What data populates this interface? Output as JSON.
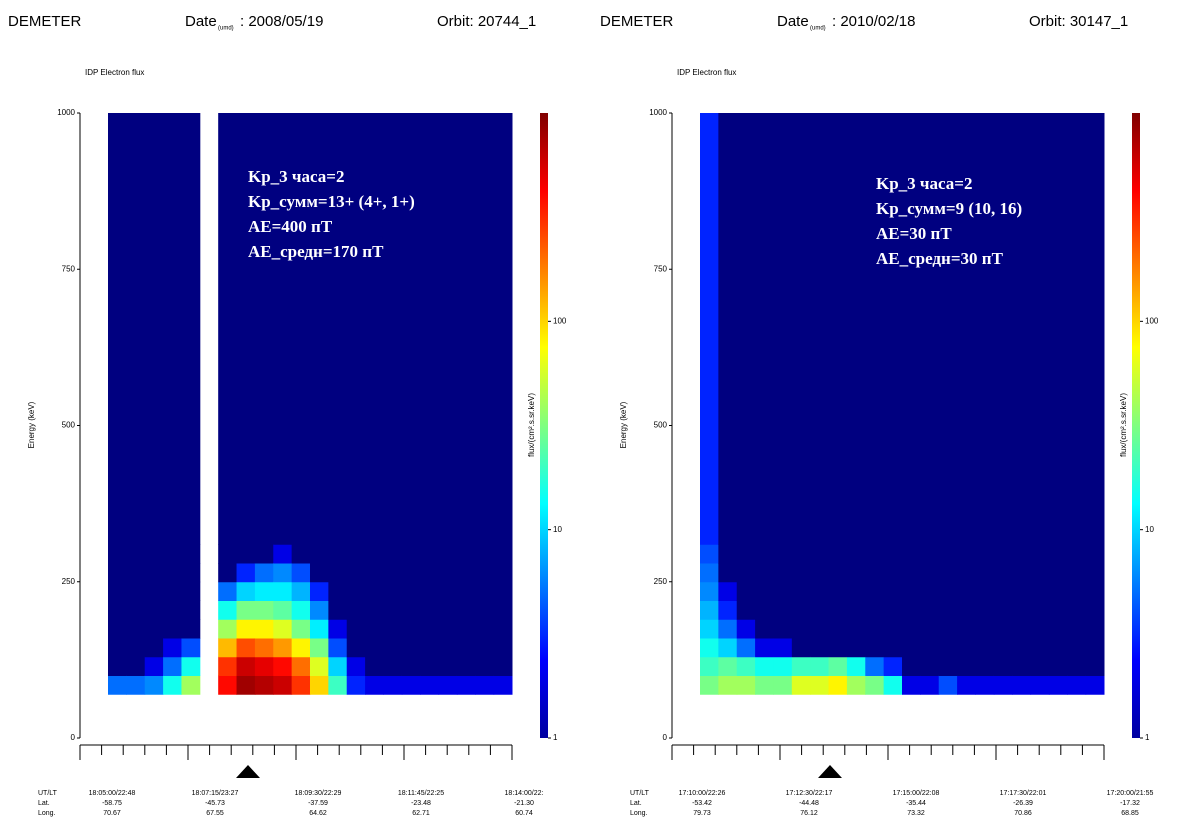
{
  "headers": [
    {
      "mission": "DEMETER",
      "date_label": "Date",
      "date_sub": "(umd)",
      "date_value": ": 2008/05/19",
      "orbit": "Orbit: 20744_1"
    },
    {
      "mission": "DEMETER",
      "date_label": "Date",
      "date_sub": "(umd)",
      "date_value": ": 2010/02/18",
      "orbit": "Orbit: 30147_1"
    }
  ],
  "chart_data": [
    {
      "type": "heatmap",
      "title": "IDP Electron flux",
      "ylabel": "Energy (keV)",
      "colorbar_label": "flux/(cm².s.sr.keV)",
      "ylim": [
        0,
        1000
      ],
      "yticks": [
        0,
        250,
        500,
        750,
        1000
      ],
      "clim": [
        1,
        1000
      ],
      "cticks": [
        1,
        10,
        100
      ],
      "log_color": true,
      "energy_bins": [
        70,
        100,
        130,
        160,
        190,
        220,
        250,
        280,
        310,
        1000
      ],
      "categories": [
        null,
        null,
        null,
        null,
        null,
        null,
        null,
        null,
        null,
        null,
        null,
        null,
        null,
        null,
        null,
        null,
        null,
        null,
        null,
        null,
        null,
        null
      ],
      "z": [
        [
          5,
          1,
          1,
          1,
          1,
          1,
          1,
          1,
          1
        ],
        [
          5,
          1,
          1,
          1,
          1,
          1,
          1,
          1,
          1
        ],
        [
          6,
          2,
          1,
          1,
          1,
          1,
          1,
          1,
          1
        ],
        [
          15,
          5,
          2,
          1,
          1,
          1,
          1,
          1,
          1
        ],
        [
          40,
          15,
          4,
          1,
          1,
          1,
          1,
          1,
          1
        ],
        null,
        [
          400,
          300,
          120,
          40,
          15,
          5,
          1,
          1,
          1
        ],
        [
          800,
          600,
          250,
          80,
          30,
          10,
          3,
          1,
          1
        ],
        [
          700,
          500,
          200,
          80,
          30,
          12,
          5,
          1,
          1
        ],
        [
          600,
          400,
          150,
          60,
          25,
          12,
          6,
          2,
          1
        ],
        [
          300,
          200,
          80,
          30,
          15,
          8,
          4,
          1,
          1
        ],
        [
          100,
          60,
          30,
          12,
          6,
          3,
          1,
          1,
          1
        ],
        [
          20,
          10,
          4,
          2,
          1,
          1,
          1,
          1,
          1
        ],
        [
          3,
          2,
          1,
          1,
          1,
          1,
          1,
          1,
          1
        ],
        [
          2,
          1,
          1,
          1,
          1,
          1,
          1,
          1,
          1
        ],
        [
          2,
          1,
          1,
          1,
          1,
          1,
          1,
          1,
          1
        ],
        [
          2,
          1,
          1,
          1,
          1,
          1,
          1,
          1,
          1
        ],
        [
          2,
          1,
          1,
          1,
          1,
          1,
          1,
          1,
          1
        ],
        [
          2,
          1,
          1,
          1,
          1,
          1,
          1,
          1,
          1
        ],
        [
          2,
          1,
          1,
          1,
          1,
          1,
          1,
          1,
          1
        ],
        [
          2,
          1,
          1,
          1,
          1,
          1,
          1,
          1,
          1
        ],
        [
          2,
          1,
          1,
          1,
          1,
          1,
          1,
          1,
          1
        ]
      ],
      "xrow_labels": [
        "UT/LT",
        "Lat.",
        "Long."
      ],
      "xtick_labels": [
        [
          "18:05:00/22:48",
          "-58.75",
          "70.67"
        ],
        [
          "18:07:15/23:27",
          "-45.73",
          "67.55"
        ],
        [
          "18:09:30/22:29",
          "-37.59",
          "64.62"
        ],
        [
          "18:11:45/22:25",
          "-23.48",
          "62.71"
        ],
        [
          "18:14:00/22:",
          "-21.30",
          "60.74"
        ]
      ],
      "annotations": [
        "Kp_3 часа=2",
        "Kp_сумм=13+ (4+, 1+)",
        "AE=400 пТ",
        "AE_средн=170 пТ"
      ]
    },
    {
      "type": "heatmap",
      "title": "IDP Electron flux",
      "ylabel": "Energy (keV)",
      "colorbar_label": "flux/(cm².s.sr.keV)",
      "ylim": [
        0,
        1000
      ],
      "yticks": [
        0,
        250,
        500,
        750,
        1000
      ],
      "clim": [
        1,
        1000
      ],
      "cticks": [
        1,
        10,
        100
      ],
      "log_color": true,
      "energy_bins": [
        70,
        100,
        130,
        160,
        190,
        220,
        250,
        280,
        310,
        1000
      ],
      "categories": [
        null,
        null,
        null,
        null,
        null,
        null,
        null,
        null,
        null,
        null,
        null,
        null,
        null,
        null,
        null,
        null,
        null,
        null,
        null,
        null,
        null,
        null
      ],
      "z": [
        [
          30,
          20,
          15,
          10,
          8,
          6,
          5,
          4,
          3
        ],
        [
          40,
          25,
          10,
          5,
          3,
          2,
          1,
          1,
          1
        ],
        [
          40,
          20,
          5,
          2,
          1,
          1,
          1,
          1,
          1
        ],
        [
          30,
          15,
          2,
          1,
          1,
          1,
          1,
          1,
          1
        ],
        [
          30,
          15,
          2,
          1,
          1,
          1,
          1,
          1,
          1
        ],
        [
          60,
          20,
          1,
          1,
          1,
          1,
          1,
          1,
          1
        ],
        [
          60,
          20,
          1,
          1,
          1,
          1,
          1,
          1,
          1
        ],
        [
          80,
          25,
          1,
          1,
          1,
          1,
          1,
          1,
          1
        ],
        [
          40,
          15,
          1,
          1,
          1,
          1,
          1,
          1,
          1
        ],
        [
          30,
          5,
          1,
          1,
          1,
          1,
          1,
          1,
          1
        ],
        [
          15,
          3,
          1,
          1,
          1,
          1,
          1,
          1,
          1
        ],
        [
          2,
          1,
          1,
          1,
          1,
          1,
          1,
          1,
          1
        ],
        [
          2,
          1,
          1,
          1,
          1,
          1,
          1,
          1,
          1
        ],
        [
          4,
          1,
          1,
          1,
          1,
          1,
          1,
          1,
          1
        ],
        [
          2,
          1,
          1,
          1,
          1,
          1,
          1,
          1,
          1
        ],
        [
          2,
          1,
          1,
          1,
          1,
          1,
          1,
          1,
          1
        ],
        [
          2,
          1,
          1,
          1,
          1,
          1,
          1,
          1,
          1
        ],
        [
          2,
          1,
          1,
          1,
          1,
          1,
          1,
          1,
          1
        ],
        [
          2,
          1,
          1,
          1,
          1,
          1,
          1,
          1,
          1
        ],
        [
          2,
          1,
          1,
          1,
          1,
          1,
          1,
          1,
          1
        ],
        [
          2,
          1,
          1,
          1,
          1,
          1,
          1,
          1,
          1
        ],
        [
          2,
          1,
          1,
          1,
          1,
          1,
          1,
          1,
          1
        ]
      ],
      "xrow_labels": [
        "UT/LT",
        "Lat.",
        "Long."
      ],
      "xtick_labels": [
        [
          "17:10:00/22:26",
          "-53.42",
          "79.73"
        ],
        [
          "17:12:30/22:17",
          "-44.48",
          "76.12"
        ],
        [
          "17:15:00/22:08",
          "-35.44",
          "73.32"
        ],
        [
          "17:17:30/22:01",
          "-26.39",
          "70.86"
        ],
        [
          "17:20:00/21:55",
          "-17.32",
          "68.85"
        ]
      ],
      "annotations": [
        "Kp_3 часа=2",
        "Kp_сумм=9 (10, 16)",
        "AE=30 пТ",
        "AE_средн=30 пТ"
      ]
    }
  ]
}
